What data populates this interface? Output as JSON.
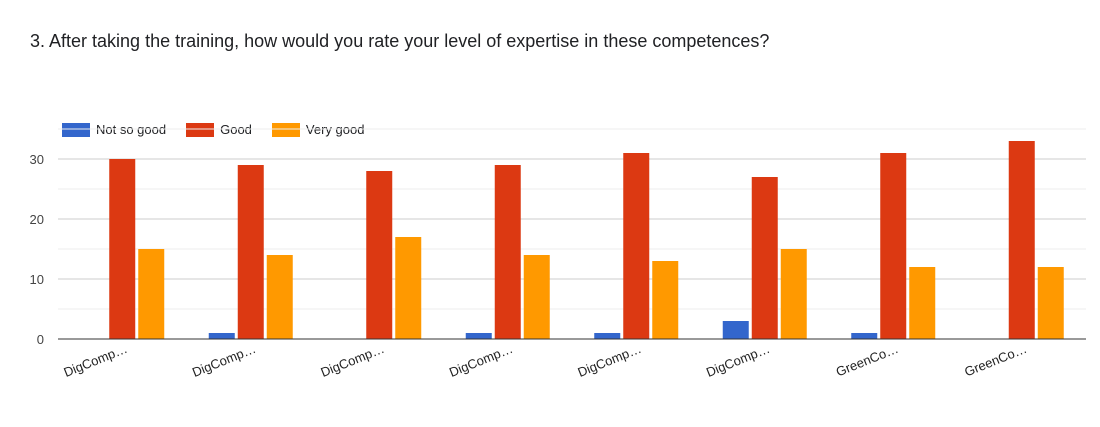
{
  "question": "3. After taking the training, how would you rate your level of expertise in these competences?",
  "colors": {
    "Not so good": "#3366cc",
    "Good": "#dc3912",
    "Very good": "#ff9900"
  },
  "chart_data": {
    "type": "bar",
    "title": "3. After taking the training, how would you rate your level of expertise in these competences?",
    "categories": [
      "DigComp…",
      "DigComp…",
      "DigComp…",
      "DigComp…",
      "DigComp…",
      "DigComp…",
      "GreenCo…",
      "GreenCo…"
    ],
    "series": [
      {
        "name": "Not so good",
        "color": "#3366cc",
        "values": [
          0,
          1,
          0,
          1,
          1,
          3,
          1,
          0
        ]
      },
      {
        "name": "Good",
        "color": "#dc3912",
        "values": [
          30,
          29,
          28,
          29,
          31,
          27,
          31,
          33
        ]
      },
      {
        "name": "Very good",
        "color": "#ff9900",
        "values": [
          15,
          14,
          17,
          14,
          13,
          15,
          12,
          12
        ]
      }
    ],
    "y_ticks": [
      0,
      10,
      20,
      30
    ],
    "ylim": [
      0,
      35
    ],
    "xlabel": "",
    "ylabel": "",
    "grid": true,
    "legend_position": "top-left"
  }
}
